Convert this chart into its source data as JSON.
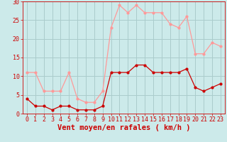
{
  "hours": [
    0,
    1,
    2,
    3,
    4,
    5,
    6,
    7,
    8,
    9,
    10,
    11,
    12,
    13,
    14,
    15,
    16,
    17,
    18,
    19,
    20,
    21,
    22,
    23
  ],
  "wind_avg": [
    4,
    2,
    2,
    1,
    2,
    2,
    1,
    1,
    1,
    2,
    11,
    11,
    11,
    13,
    13,
    11,
    11,
    11,
    11,
    12,
    7,
    6,
    7,
    8
  ],
  "wind_gust": [
    11,
    11,
    6,
    6,
    6,
    11,
    4,
    3,
    3,
    6,
    23,
    29,
    27,
    29,
    27,
    27,
    27,
    24,
    23,
    26,
    16,
    16,
    19,
    18
  ],
  "bg_color": "#cceaea",
  "grid_color": "#aacccc",
  "avg_color": "#cc0000",
  "gust_color": "#ff9999",
  "xlabel": "Vent moyen/en rafales ( km/h )",
  "ylim": [
    0,
    30
  ],
  "yticks": [
    0,
    5,
    10,
    15,
    20,
    25,
    30
  ],
  "xticks": [
    0,
    1,
    2,
    3,
    4,
    5,
    6,
    7,
    8,
    9,
    10,
    11,
    12,
    13,
    14,
    15,
    16,
    17,
    18,
    19,
    20,
    21,
    22,
    23
  ],
  "xlabel_fontsize": 7.5,
  "tick_fontsize": 6.0,
  "marker_size": 2.0,
  "line_width": 0.9
}
